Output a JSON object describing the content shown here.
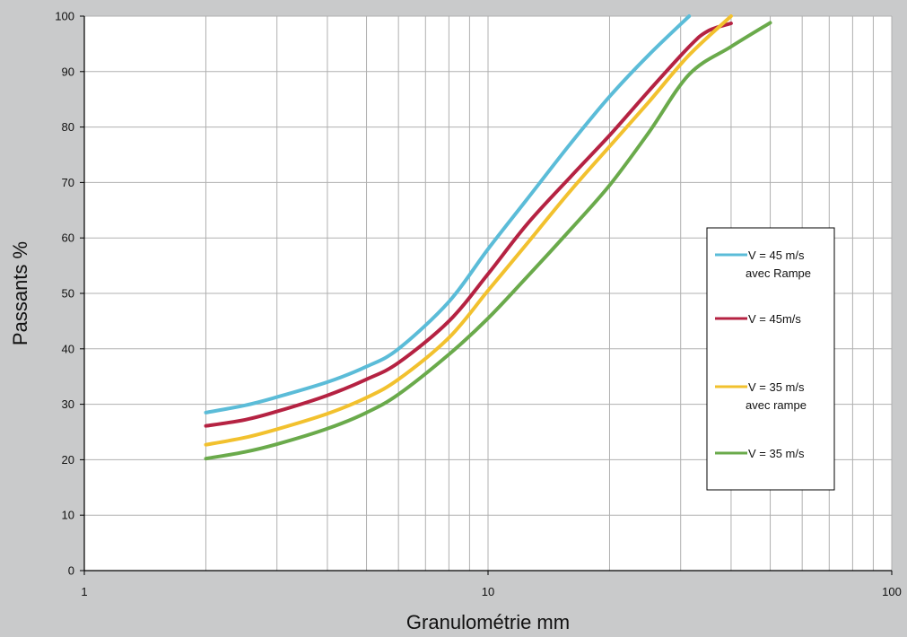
{
  "chart_data": {
    "type": "line",
    "title": "",
    "xlabel": "Granulométrie mm",
    "ylabel": "Passants %",
    "x_scale": "log",
    "xlim": [
      1,
      100
    ],
    "ylim": [
      0,
      100
    ],
    "x_tick_labels": [
      "1",
      "10",
      "100"
    ],
    "y_tick_labels": [
      "0",
      "10",
      "20",
      "30",
      "40",
      "50",
      "60",
      "70",
      "80",
      "90",
      "100"
    ],
    "grid": true,
    "legend_position": "right",
    "series": [
      {
        "name": "V = 45 m/s avec Rampe",
        "legend_lines": [
          "V = 45 m/s",
          "avec Rampe"
        ],
        "color": "#5bbcd8",
        "x": [
          2,
          2.5,
          3,
          4,
          5,
          6,
          8,
          10,
          12.5,
          16,
          20,
          25,
          31.5
        ],
        "y": [
          28.5,
          29.8,
          31.3,
          34.0,
          36.8,
          40.0,
          48.5,
          58.0,
          67.0,
          77.0,
          85.5,
          93.0,
          100.0
        ]
      },
      {
        "name": "V = 45m/s",
        "legend_lines": [
          "V = 45m/s"
        ],
        "color": "#b52242",
        "x": [
          2,
          2.5,
          3,
          4,
          5,
          6,
          8,
          10,
          12.5,
          16,
          20,
          25,
          31.5,
          35,
          40
        ],
        "y": [
          26.1,
          27.2,
          28.7,
          31.6,
          34.5,
          37.5,
          45.0,
          53.5,
          62.5,
          71.0,
          78.5,
          86.5,
          94.5,
          97.3,
          98.7
        ]
      },
      {
        "name": "V = 35 m/s avec rampe",
        "legend_lines": [
          "V = 35 m/s",
          "avec rampe"
        ],
        "color": "#f2c12e",
        "x": [
          2,
          2.5,
          3,
          4,
          5,
          6,
          8,
          10,
          12.5,
          16,
          20,
          25,
          31.5,
          40
        ],
        "y": [
          22.7,
          24.0,
          25.5,
          28.3,
          31.2,
          34.5,
          42.0,
          50.5,
          59.0,
          68.5,
          76.5,
          84.5,
          93.0,
          100.0
        ]
      },
      {
        "name": "V = 35 m/s",
        "legend_lines": [
          "V = 35 m/s"
        ],
        "color": "#6aaa4b",
        "x": [
          2,
          2.5,
          3,
          4,
          5,
          6,
          8,
          10,
          12.5,
          16,
          20,
          25,
          31.5,
          40,
          50
        ],
        "y": [
          20.2,
          21.4,
          22.8,
          25.6,
          28.5,
          31.8,
          39.0,
          45.5,
          53.0,
          61.5,
          69.5,
          79.0,
          89.5,
          94.5,
          98.8
        ]
      }
    ]
  }
}
